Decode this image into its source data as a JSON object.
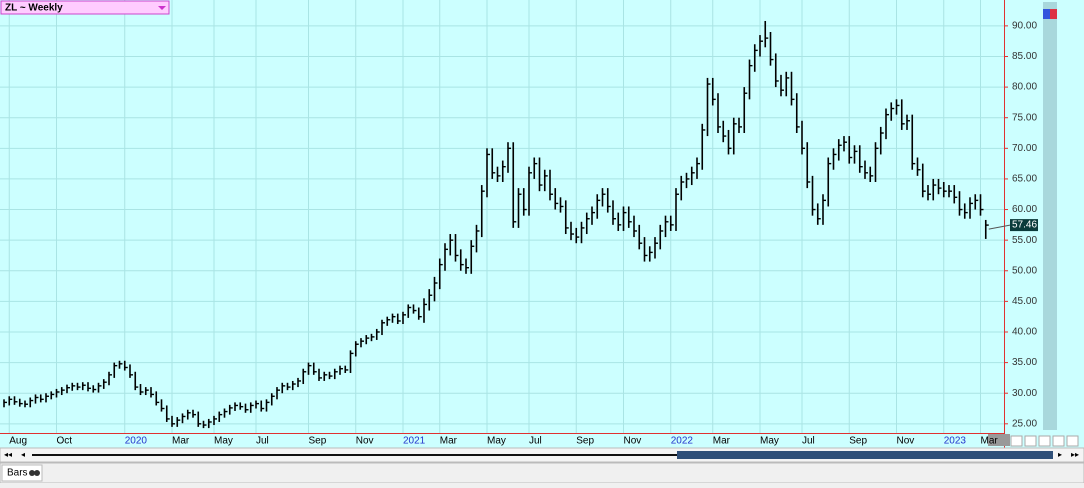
{
  "chart_data": {
    "type": "ohlc",
    "title": "ZL ~ Weekly",
    "categories": [
      null,
      "Aug",
      null,
      null,
      null,
      null,
      null,
      null,
      null,
      null,
      "Oct",
      null,
      null,
      null,
      null,
      null,
      null,
      null,
      null,
      null,
      null,
      null,
      null,
      "2020",
      null,
      null,
      null,
      null,
      null,
      null,
      null,
      null,
      "Mar",
      null,
      null,
      null,
      null,
      null,
      null,
      null,
      "May",
      null,
      null,
      null,
      null,
      null,
      null,
      null,
      "Jul",
      null,
      null,
      null,
      null,
      null,
      null,
      null,
      null,
      null,
      "Sep",
      null,
      null,
      null,
      null,
      null,
      null,
      null,
      null,
      "Nov",
      null,
      null,
      null,
      null,
      null,
      null,
      null,
      null,
      "2021",
      null,
      null,
      null,
      null,
      null,
      null,
      "Mar",
      null,
      null,
      null,
      null,
      null,
      null,
      null,
      null,
      "May",
      null,
      null,
      null,
      null,
      null,
      null,
      null,
      "Jul",
      null,
      null,
      null,
      null,
      null,
      null,
      null,
      null,
      "Sep",
      null,
      null,
      null,
      null,
      null,
      null,
      null,
      null,
      "Nov",
      null,
      null,
      null,
      null,
      null,
      null,
      null,
      null,
      "2022",
      null,
      null,
      null,
      null,
      null,
      null,
      null,
      "Mar",
      null,
      null,
      null,
      null,
      null,
      null,
      null,
      null,
      "May",
      null,
      null,
      null,
      null,
      null,
      null,
      null,
      "Jul",
      null,
      null,
      null,
      null,
      null,
      null,
      null,
      null,
      "Sep",
      null,
      null,
      null,
      null,
      null,
      null,
      null,
      null,
      "Nov",
      null,
      null,
      null,
      null,
      null,
      null,
      null,
      null,
      "2023",
      null,
      null,
      null,
      null,
      null,
      null,
      "Mar",
      null
    ],
    "high": [
      29.0,
      29.5,
      29.5,
      29.1,
      28.8,
      29.3,
      29.8,
      29.8,
      30.0,
      30.3,
      30.7,
      31.0,
      31.4,
      31.7,
      31.7,
      31.8,
      31.8,
      31.3,
      31.7,
      32.3,
      33.5,
      35.0,
      35.3,
      35.3,
      34.7,
      33.5,
      31.5,
      31.0,
      31.0,
      30.3,
      29.0,
      28.0,
      26.3,
      26.1,
      26.7,
      27.3,
      27.3,
      27.0,
      25.5,
      25.8,
      26.3,
      27.0,
      27.5,
      28.1,
      28.5,
      28.5,
      28.3,
      28.5,
      28.8,
      28.8,
      29.0,
      30.0,
      31.0,
      31.7,
      31.7,
      32.0,
      32.5,
      34.0,
      35.0,
      35.0,
      34.0,
      33.5,
      33.5,
      34.0,
      34.5,
      34.5,
      37.0,
      38.5,
      39.0,
      39.5,
      39.7,
      40.5,
      42.0,
      42.5,
      43.0,
      43.0,
      43.3,
      44.5,
      44.5,
      44.0,
      45.5,
      47.0,
      49.0,
      52.0,
      54.5,
      56.0,
      56.0,
      53.5,
      52.0,
      55.0,
      57.5,
      64.0,
      70.0,
      70.0,
      67.0,
      68.0,
      71.0,
      71.0,
      63.5,
      63.5,
      67.0,
      68.5,
      68.5,
      66.5,
      66.5,
      63.5,
      62.0,
      61.5,
      58.0,
      57.0,
      58.0,
      59.5,
      60.5,
      62.5,
      63.5,
      63.5,
      61.5,
      59.5,
      60.5,
      60.5,
      59.0,
      57.5,
      55.5,
      54.0,
      55.5,
      57.5,
      59.0,
      59.0,
      63.5,
      65.5,
      66.0,
      67.0,
      68.5,
      74.0,
      81.5,
      81.5,
      79.0,
      74.5,
      73.0,
      75.0,
      75.0,
      80.0,
      84.5,
      87.0,
      88.5,
      90.8,
      89.0,
      85.5,
      82.0,
      82.5,
      82.5,
      79.0,
      74.5,
      71.0,
      65.5,
      61.0,
      62.5,
      68.5,
      70.0,
      71.5,
      72.0,
      72.0,
      70.5,
      70.5,
      68.0,
      67.0,
      71.0,
      73.5,
      76.5,
      77.5,
      78.0,
      78.0,
      75.5,
      75.5,
      68.5,
      67.5,
      64.0,
      65.0,
      65.0,
      64.5,
      64.0,
      64.0,
      63.0,
      61.0,
      62.0,
      62.5,
      62.5,
      58.3
    ],
    "low": [
      27.7,
      28.0,
      28.1,
      27.8,
      27.7,
      27.7,
      28.3,
      28.5,
      28.5,
      29.0,
      29.3,
      29.7,
      30.0,
      30.4,
      30.5,
      30.5,
      30.3,
      30.1,
      30.1,
      30.7,
      31.3,
      32.5,
      34.0,
      33.7,
      32.5,
      30.5,
      29.7,
      29.7,
      29.3,
      28.0,
      27.0,
      25.3,
      24.5,
      24.5,
      25.1,
      25.7,
      26.0,
      24.5,
      24.3,
      24.3,
      24.8,
      25.3,
      26.0,
      26.5,
      27.1,
      27.3,
      26.8,
      26.8,
      27.5,
      27.0,
      27.0,
      28.0,
      29.0,
      30.0,
      30.5,
      30.5,
      31.0,
      31.5,
      33.0,
      33.0,
      32.0,
      32.0,
      32.3,
      32.3,
      33.0,
      33.3,
      33.3,
      36.0,
      37.5,
      38.0,
      38.5,
      38.7,
      39.5,
      41.0,
      41.5,
      41.3,
      41.3,
      42.3,
      43.0,
      42.0,
      41.5,
      43.5,
      45.0,
      47.0,
      50.0,
      52.5,
      51.5,
      50.0,
      49.5,
      49.5,
      53.0,
      55.5,
      62.0,
      65.0,
      64.5,
      64.5,
      66.0,
      57.0,
      57.0,
      59.0,
      59.0,
      65.0,
      63.0,
      63.0,
      61.5,
      60.0,
      59.5,
      56.0,
      55.0,
      54.5,
      54.5,
      56.0,
      57.5,
      58.5,
      60.5,
      59.5,
      57.5,
      56.5,
      56.5,
      57.0,
      55.5,
      53.5,
      51.5,
      51.5,
      52.0,
      53.5,
      55.5,
      56.5,
      56.5,
      61.5,
      63.5,
      64.0,
      65.0,
      66.5,
      72.0,
      77.0,
      72.5,
      71.0,
      69.0,
      69.0,
      72.5,
      72.5,
      78.0,
      82.5,
      85.0,
      86.5,
      83.5,
      80.0,
      78.5,
      78.5,
      77.0,
      72.5,
      69.0,
      63.5,
      59.0,
      57.5,
      57.5,
      60.5,
      66.5,
      68.0,
      69.5,
      67.5,
      67.5,
      66.0,
      65.0,
      64.5,
      64.5,
      69.0,
      71.5,
      74.5,
      75.5,
      73.0,
      73.0,
      66.5,
      65.5,
      62.0,
      61.5,
      61.5,
      62.5,
      62.0,
      62.0,
      61.0,
      59.0,
      58.5,
      58.5,
      60.0,
      59.0,
      55.2
    ],
    "close": [
      28.5,
      29.0,
      28.6,
      28.3,
      28.2,
      28.8,
      29.3,
      29.0,
      29.5,
      29.8,
      30.2,
      30.5,
      30.9,
      31.2,
      31.0,
      31.3,
      30.8,
      30.6,
      31.2,
      31.8,
      33.0,
      34.5,
      34.8,
      34.2,
      33.0,
      31.0,
      30.2,
      30.5,
      29.8,
      28.5,
      27.5,
      25.8,
      25.0,
      25.6,
      26.2,
      26.8,
      26.5,
      25.0,
      24.8,
      25.3,
      25.8,
      26.5,
      27.0,
      27.6,
      28.0,
      27.8,
      27.3,
      28.0,
      28.3,
      27.5,
      28.5,
      29.5,
      30.5,
      31.2,
      31.0,
      31.5,
      32.0,
      33.5,
      34.5,
      33.5,
      32.5,
      33.0,
      32.8,
      33.5,
      34.0,
      33.8,
      36.5,
      38.0,
      38.5,
      39.0,
      39.2,
      40.0,
      41.5,
      42.0,
      42.5,
      41.8,
      42.8,
      44.0,
      43.5,
      42.5,
      44.5,
      46.0,
      48.0,
      51.0,
      53.5,
      55.0,
      52.5,
      51.0,
      50.5,
      54.0,
      56.5,
      63.0,
      69.0,
      66.0,
      65.5,
      67.0,
      70.0,
      58.0,
      62.5,
      60.0,
      66.0,
      67.5,
      64.0,
      65.5,
      62.5,
      61.0,
      60.5,
      57.0,
      56.0,
      55.5,
      57.0,
      58.5,
      59.5,
      61.5,
      62.5,
      60.5,
      58.5,
      57.5,
      59.5,
      58.0,
      56.5,
      54.5,
      52.5,
      53.0,
      54.5,
      56.5,
      58.0,
      57.5,
      62.5,
      64.5,
      65.0,
      66.0,
      67.5,
      73.0,
      80.5,
      78.0,
      73.5,
      72.0,
      70.0,
      74.0,
      73.5,
      79.0,
      83.5,
      86.0,
      87.5,
      88.0,
      84.5,
      81.0,
      79.5,
      81.5,
      78.0,
      73.5,
      70.0,
      64.5,
      60.0,
      58.5,
      61.5,
      67.5,
      69.0,
      70.5,
      71.0,
      68.5,
      69.5,
      67.0,
      66.0,
      65.5,
      70.0,
      72.5,
      75.5,
      76.5,
      77.0,
      74.0,
      74.5,
      67.5,
      66.5,
      63.0,
      62.5,
      64.0,
      63.5,
      63.0,
      63.0,
      62.0,
      60.0,
      59.5,
      61.0,
      61.5,
      60.0,
      57.46
    ],
    "ylim": [
      23.5,
      93.9
    ],
    "yticks": [
      {
        "value": 25,
        "label": "25.00"
      },
      {
        "value": 30,
        "label": "30.00"
      },
      {
        "value": 35,
        "label": "35.00"
      },
      {
        "value": 40,
        "label": "40.00"
      },
      {
        "value": 45,
        "label": "45.00"
      },
      {
        "value": 50,
        "label": "50.00"
      },
      {
        "value": 55,
        "label": "55.00"
      },
      {
        "value": 60,
        "label": "60.00"
      },
      {
        "value": 65,
        "label": "65.00"
      },
      {
        "value": 70,
        "label": "70.00"
      },
      {
        "value": 75,
        "label": "75.00"
      },
      {
        "value": 80,
        "label": "80.00"
      },
      {
        "value": 85,
        "label": "85.00"
      },
      {
        "value": 90,
        "label": "90.00"
      }
    ],
    "grid": true,
    "color": "#000000",
    "year_label_color": "#2233cc",
    "label_color": "#000000",
    "last_price_color": "#0b3b3b"
  },
  "toolbar": {
    "label": "Bars"
  }
}
